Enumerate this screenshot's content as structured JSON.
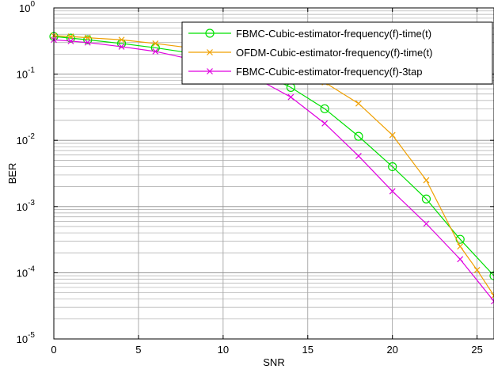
{
  "chart_data": {
    "type": "line",
    "xlabel": "SNR",
    "ylabel": "BER",
    "xlim": [
      0,
      26
    ],
    "ylim": [
      1e-05,
      1
    ],
    "yscale": "log",
    "grid": true,
    "legend_position": "top-right",
    "x_ticks": [
      {
        "value": 0,
        "label": "0"
      },
      {
        "value": 5,
        "label": "5"
      },
      {
        "value": 10,
        "label": "10"
      },
      {
        "value": 15,
        "label": "15"
      },
      {
        "value": 20,
        "label": "20"
      },
      {
        "value": 25,
        "label": "25"
      }
    ],
    "y_ticks": [
      {
        "exp": 0,
        "base": "10",
        "power": "0"
      },
      {
        "exp": -1,
        "base": "10",
        "power": "-1"
      },
      {
        "exp": -2,
        "base": "10",
        "power": "-2"
      },
      {
        "exp": -3,
        "base": "10",
        "power": "-3"
      },
      {
        "exp": -4,
        "base": "10",
        "power": "-4"
      },
      {
        "exp": -5,
        "base": "10",
        "power": "-5"
      }
    ],
    "series": [
      {
        "name": "FBMC-Cubic-estimator-frequency(f)-time(t)",
        "color": "#00e000",
        "marker": "circle",
        "x": [
          0,
          1,
          2,
          4,
          6,
          8,
          10,
          12,
          14,
          16,
          18,
          20,
          22,
          24,
          26
        ],
        "y": [
          0.37,
          0.35,
          0.33,
          0.29,
          0.25,
          0.21,
          0.16,
          0.11,
          0.063,
          0.03,
          0.0115,
          0.004,
          0.0013,
          0.00032,
          9e-05
        ]
      },
      {
        "name": "OFDM-Cubic-estimator-frequency(f)-time(t)",
        "color": "#f0a000",
        "marker": "x",
        "x": [
          0,
          1,
          2,
          4,
          6,
          8,
          10,
          12,
          14,
          16,
          18,
          20,
          22,
          24,
          25,
          26
        ],
        "y": [
          0.38,
          0.37,
          0.355,
          0.33,
          0.29,
          0.25,
          0.2,
          0.16,
          0.115,
          0.075,
          0.036,
          0.012,
          0.0025,
          0.00025,
          0.00011,
          4.5e-05
        ]
      },
      {
        "name": "FBMC-Cubic-estimator-frequency(f)-3tap",
        "color": "#e000e0",
        "marker": "x",
        "x": [
          0,
          1,
          2,
          4,
          6,
          8,
          10,
          12,
          14,
          16,
          18,
          20,
          22,
          24,
          26
        ],
        "y": [
          0.33,
          0.315,
          0.3,
          0.26,
          0.22,
          0.17,
          0.125,
          0.085,
          0.045,
          0.018,
          0.0058,
          0.0017,
          0.00055,
          0.00016,
          3.7e-05
        ]
      }
    ]
  }
}
